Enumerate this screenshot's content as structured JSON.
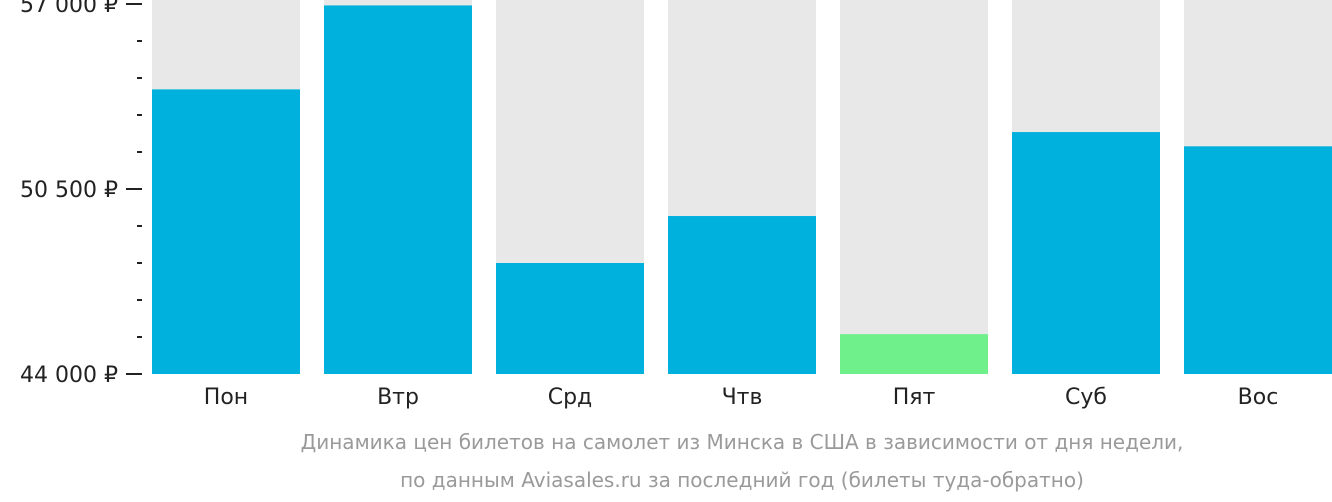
{
  "chart_data": {
    "type": "bar",
    "categories": [
      "Пон",
      "Втр",
      "Срд",
      "Чтв",
      "Пят",
      "Суб",
      "Вос"
    ],
    "values": [
      54000,
      56950,
      47900,
      49550,
      45400,
      52500,
      52000
    ],
    "highlight_index": 4,
    "ylim": [
      44000,
      57000
    ],
    "yticks": [
      {
        "value": 57000,
        "label": "57 000 ₽"
      },
      {
        "value": 50500,
        "label": "50 500 ₽"
      },
      {
        "value": 44000,
        "label": "44 000 ₽"
      }
    ],
    "minor_ticks_per_interval": 4,
    "colors": {
      "bar": "#00b0dd",
      "highlight": "#6ff08a",
      "background_bar": "#e8e8e8",
      "axis": "#222222"
    },
    "caption": [
      "Динамика цен билетов на самолет из Минска в США в зависимости от дня недели,",
      "по данным Aviasales.ru за последний год (билеты туда-обратно)"
    ]
  }
}
